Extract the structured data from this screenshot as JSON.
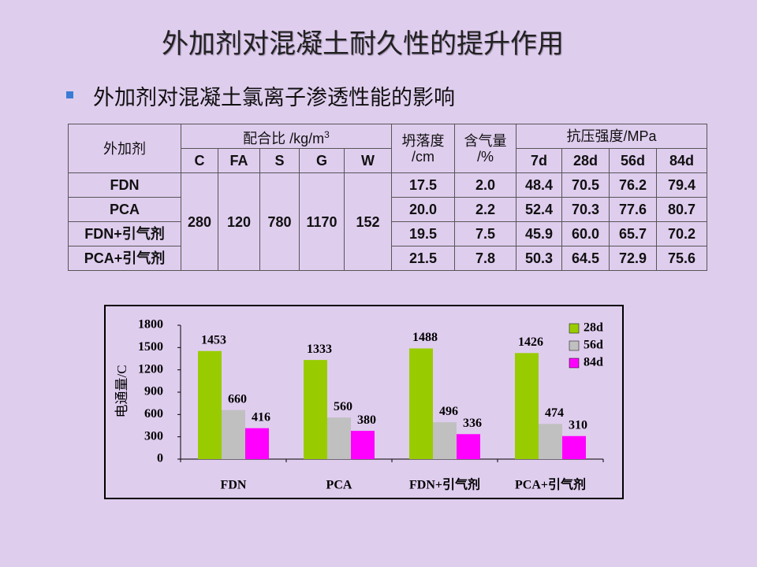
{
  "title": "外加剂对混凝土耐久性的提升作用",
  "bullet": "外加剂对混凝土氯离子渗透性能的影响",
  "table": {
    "agent_header": "外加剂",
    "mix_header": "配合比 /kg/m",
    "mix_header_sup": "3",
    "mix_columns": [
      "C",
      "FA",
      "S",
      "G",
      "W"
    ],
    "slump_header": [
      "坍落度",
      "/cm"
    ],
    "air_header": [
      "含气量",
      "/%"
    ],
    "strength_header": "抗压强度/MPa",
    "strength_columns": [
      "7d",
      "28d",
      "56d",
      "84d"
    ],
    "mix": [
      "280",
      "120",
      "780",
      "1170",
      "152"
    ],
    "rows": [
      {
        "name": "FDN",
        "slump": "17.5",
        "air": "2.0",
        "strength": [
          "48.4",
          "70.5",
          "76.2",
          "79.4"
        ]
      },
      {
        "name": "PCA",
        "slump": "20.0",
        "air": "2.2",
        "strength": [
          "52.4",
          "70.3",
          "77.6",
          "80.7"
        ]
      },
      {
        "name": "FDN+引气剂",
        "slump": "19.5",
        "air": "7.5",
        "strength": [
          "45.9",
          "60.0",
          "65.7",
          "70.2"
        ]
      },
      {
        "name": "PCA+引气剂",
        "slump": "21.5",
        "air": "7.8",
        "strength": [
          "50.3",
          "64.5",
          "72.9",
          "75.6"
        ]
      }
    ]
  },
  "chart_data": {
    "type": "bar",
    "y_label": "电通量/C",
    "categories": [
      "FDN",
      "PCA",
      "FDN+引气剂",
      "PCA+引气剂"
    ],
    "series": [
      {
        "name": "28d",
        "color": "#99cc00",
        "values": [
          1453,
          1333,
          1488,
          1426
        ]
      },
      {
        "name": "56d",
        "color": "#c0c0c0",
        "values": [
          660,
          560,
          496,
          474
        ]
      },
      {
        "name": "84d",
        "color": "#ff00ff",
        "values": [
          416,
          380,
          336,
          310
        ]
      }
    ],
    "ylim": [
      0,
      1800
    ],
    "yticks": [
      0,
      300,
      600,
      900,
      1200,
      1500,
      1800
    ],
    "legend": "top-right"
  }
}
